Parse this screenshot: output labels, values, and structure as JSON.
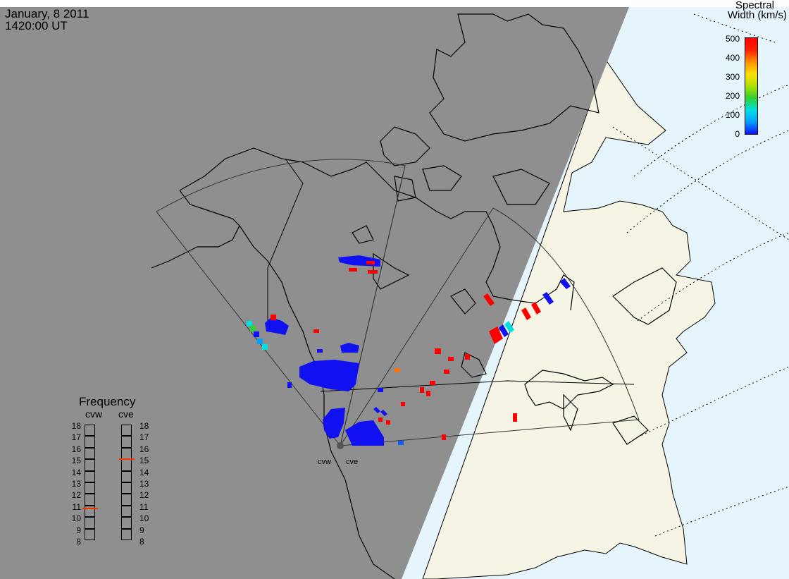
{
  "header": {
    "date": "January, 8 2011",
    "time": "1420:00 UT"
  },
  "colorbar": {
    "title_line1": "Spectral",
    "title_line2": "Width (km/s)",
    "ticks": [
      "500",
      "400",
      "300",
      "200",
      "100",
      "0"
    ],
    "scale": [
      "#1010ff",
      "#00a0ff",
      "#00e0e0",
      "#30d030",
      "#b0e000",
      "#ffe000",
      "#ff9000",
      "#ff2000",
      "#ff0000"
    ]
  },
  "frequency": {
    "title": "Frequency",
    "radars": [
      {
        "name": "cvw",
        "selected_mhz": 10.8
      },
      {
        "name": "cve",
        "selected_mhz": 15.1
      }
    ],
    "scale": [
      "18",
      "17",
      "16",
      "15",
      "14",
      "13",
      "12",
      "11",
      "10",
      "9",
      "8"
    ],
    "marker_color": "#ff3000"
  },
  "sites": {
    "west": "cvw",
    "east": "cve"
  },
  "colors": {
    "night": "#8f8f8f",
    "land_day": "#f6f4e4",
    "ocean_day": "#e6f4fc",
    "scatter_low": "#1010f0",
    "scatter_high": "#ff0000"
  }
}
